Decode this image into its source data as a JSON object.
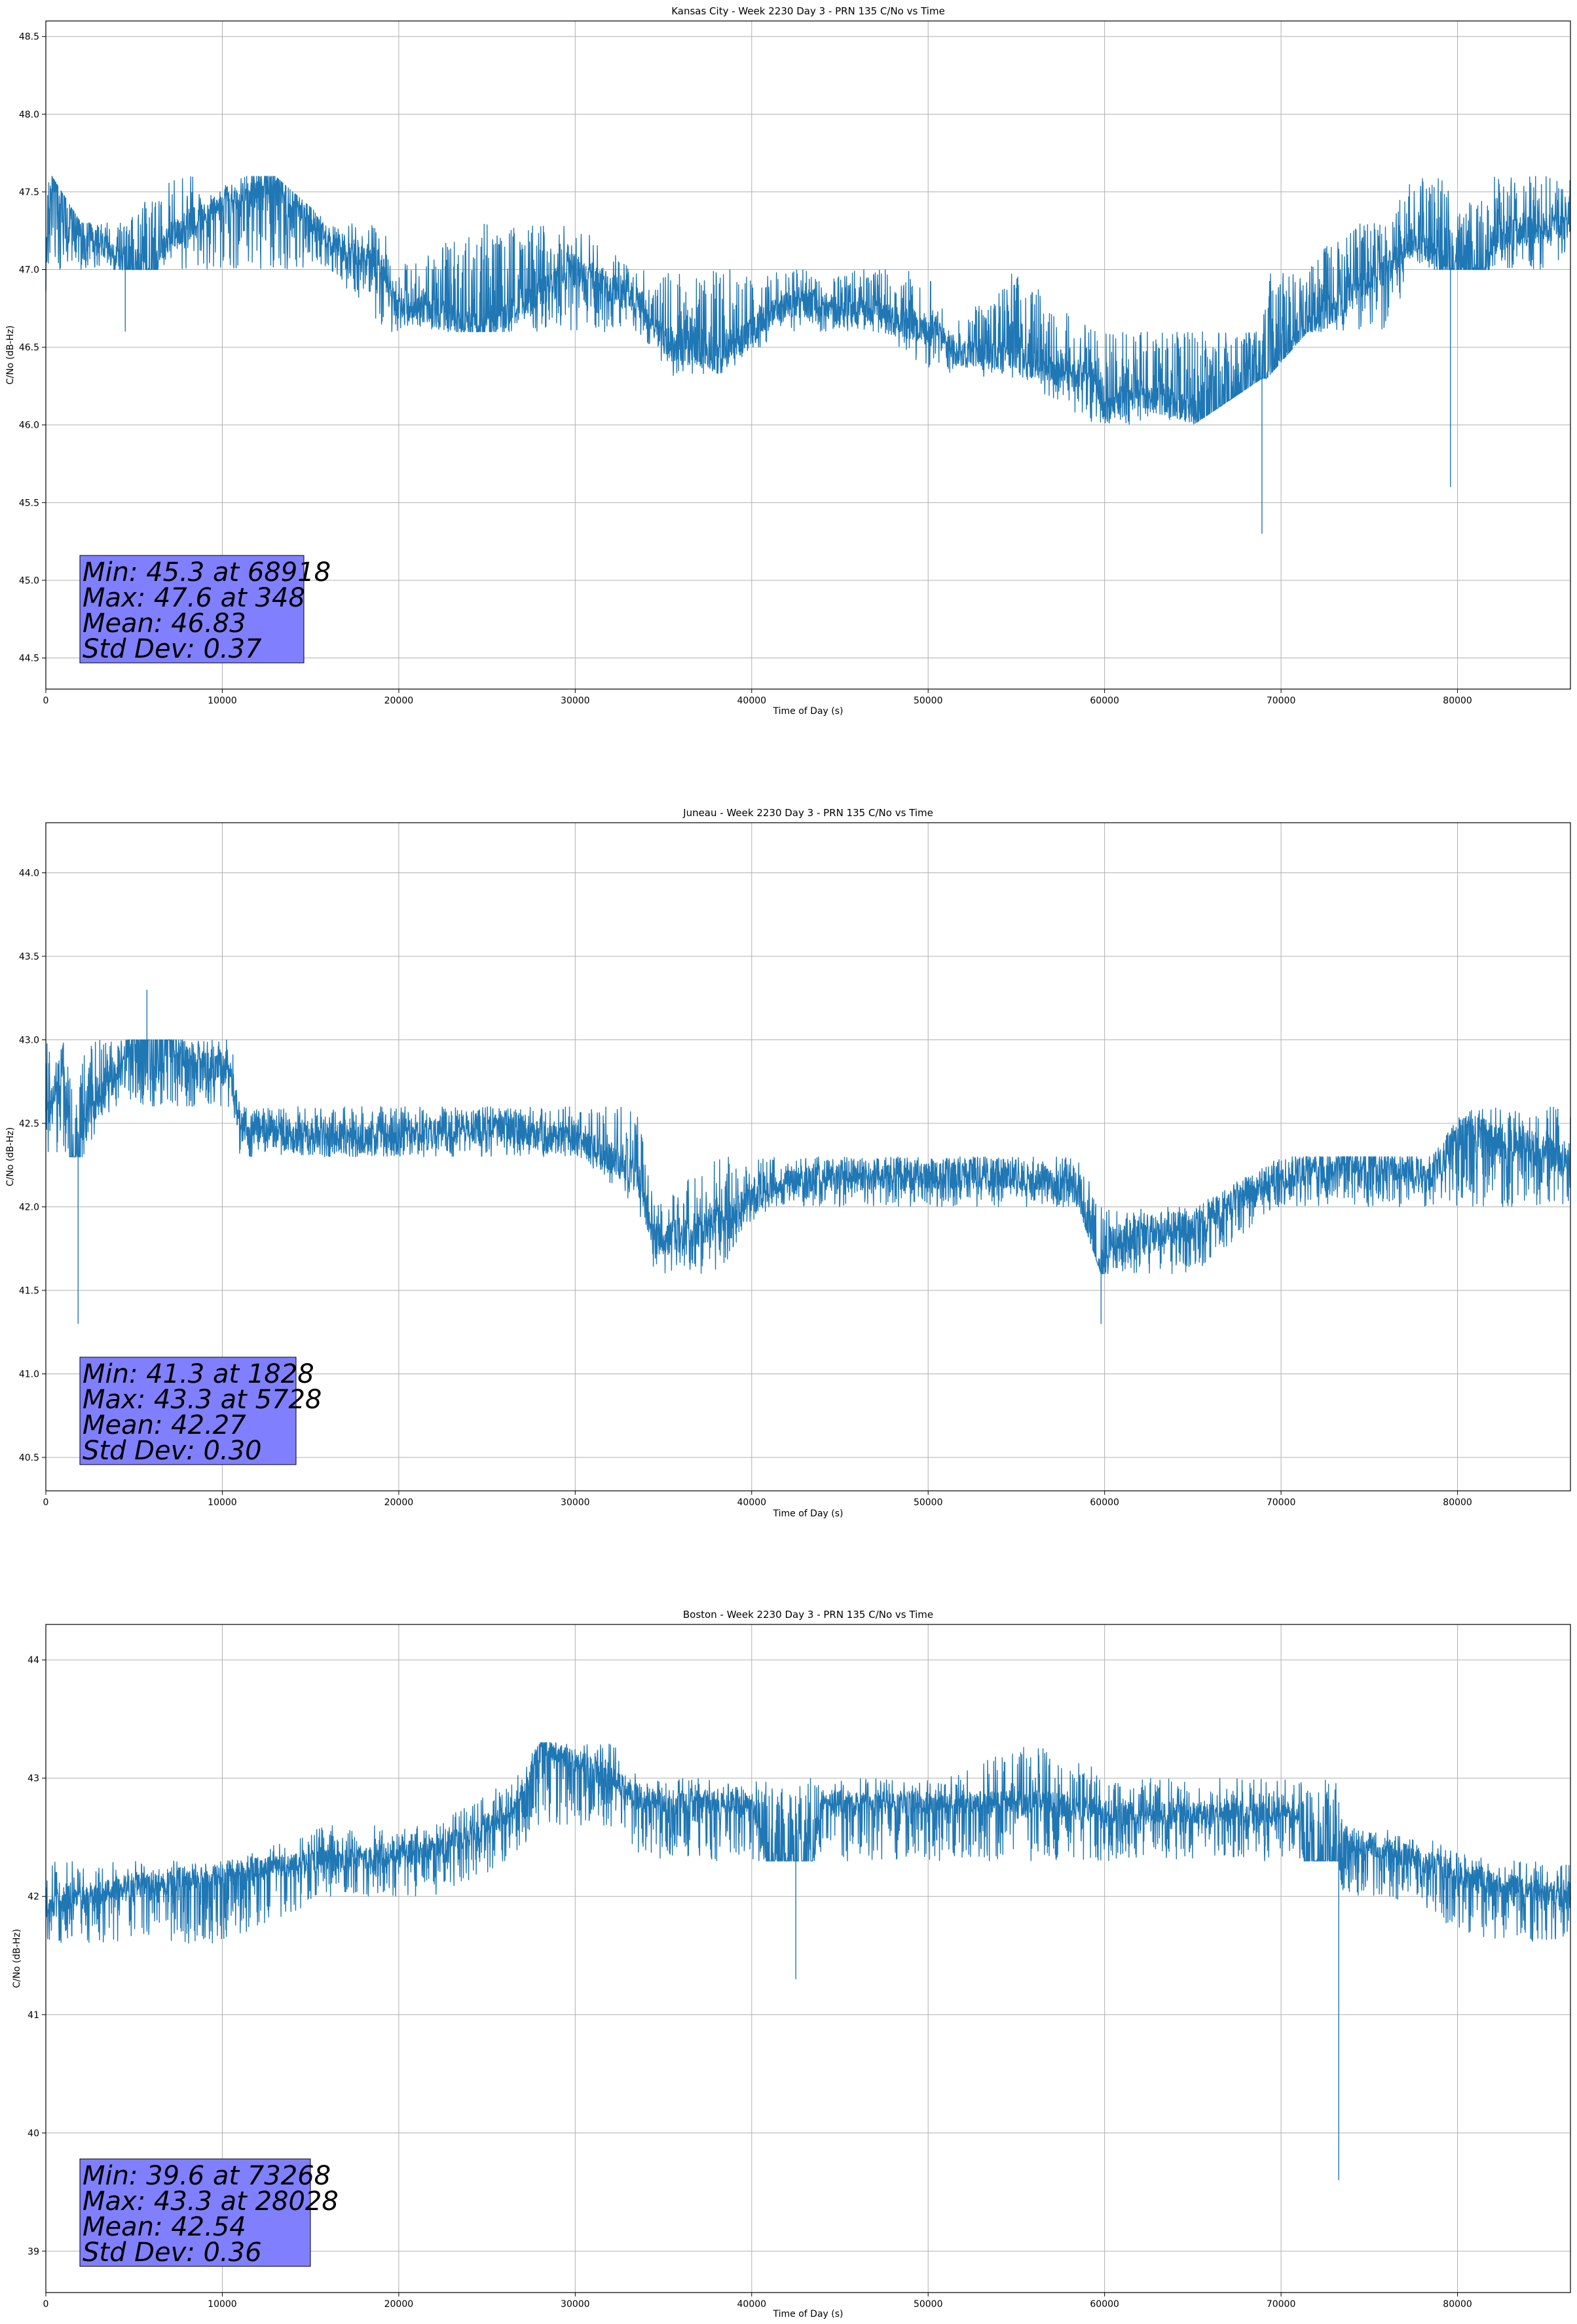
{
  "chart_data": [
    {
      "type": "line",
      "title": "Kansas City - Week 2230 Day 3 - PRN 135 C/No vs Time",
      "xlabel": "Time of Day (s)",
      "ylabel": "C/No (dB-Hz)",
      "xlim": [
        0,
        86400
      ],
      "ylim": [
        44.3,
        48.6
      ],
      "xticks": [
        0,
        10000,
        20000,
        30000,
        40000,
        50000,
        60000,
        70000,
        80000
      ],
      "yticks": [
        44.5,
        45.0,
        45.5,
        46.0,
        46.5,
        47.0,
        47.5,
        48.0,
        48.5
      ],
      "ytick_labels": [
        "44.5",
        "45.0",
        "45.5",
        "46.0",
        "46.5",
        "47.0",
        "47.5",
        "48.0",
        "48.5"
      ],
      "grid": true,
      "line_color": "#1f77b4",
      "series": [
        {
          "name": "C/No",
          "x": [
            0,
            348,
            2000,
            4400,
            4500,
            7000,
            9500,
            13000,
            16000,
            19200,
            19600,
            25000,
            30000,
            33500,
            35500,
            38000,
            42000,
            47000,
            50500,
            51000,
            55000,
            59500,
            60000,
            62000,
            65000,
            68918,
            69200,
            71500,
            73500,
            76000,
            77500,
            79500,
            79600,
            82000,
            86400
          ],
          "y": [
            47.0,
            47.6,
            47.3,
            47.0,
            46.6,
            47.2,
            47.4,
            47.6,
            47.2,
            47.0,
            46.8,
            46.6,
            47.0,
            46.8,
            46.5,
            46.4,
            46.8,
            46.7,
            46.6,
            46.5,
            46.4,
            46.3,
            46.1,
            46.2,
            46.1,
            45.3,
            46.3,
            46.6,
            46.8,
            47.0,
            47.2,
            47.0,
            45.6,
            47.2,
            47.3
          ],
          "band_low": [
            47.0,
            47.0,
            47.0,
            47.0,
            47.0,
            47.0,
            47.0,
            47.0,
            47.0,
            46.6,
            46.6,
            46.6,
            46.6,
            46.6,
            46.3,
            46.3,
            46.6,
            46.6,
            46.3,
            46.3,
            46.3,
            46.0,
            46.0,
            46.0,
            46.0,
            46.3,
            46.3,
            46.6,
            46.6,
            46.6,
            47.0,
            47.0,
            47.0,
            47.0,
            47.0
          ],
          "band_high": [
            47.6,
            47.6,
            47.3,
            47.3,
            47.3,
            47.6,
            47.6,
            47.6,
            47.3,
            47.3,
            47.0,
            47.3,
            47.3,
            47.0,
            47.0,
            47.0,
            47.0,
            47.0,
            47.0,
            46.6,
            47.0,
            46.6,
            46.6,
            46.6,
            46.6,
            46.6,
            47.0,
            47.0,
            47.3,
            47.3,
            47.6,
            47.6,
            47.3,
            47.6,
            47.6
          ]
        }
      ],
      "stats": {
        "min": "Min: 45.3 at 68918",
        "max": "Max: 47.6 at 348",
        "mean": "Mean: 46.83",
        "std": "Std Dev: 0.37"
      },
      "stats_box_color": "#8080ff"
    },
    {
      "type": "line",
      "title": "Juneau - Week 2230 Day 3 - PRN 135 C/No vs Time",
      "xlabel": "Time of Day (s)",
      "ylabel": "C/No (dB-Hz)",
      "xlim": [
        0,
        86400
      ],
      "ylim": [
        40.3,
        44.3
      ],
      "xticks": [
        0,
        10000,
        20000,
        30000,
        40000,
        50000,
        60000,
        70000,
        80000
      ],
      "yticks": [
        40.5,
        41.0,
        41.5,
        42.0,
        42.5,
        43.0,
        43.5,
        44.0
      ],
      "ytick_labels": [
        "40.5",
        "41.0",
        "41.5",
        "42.0",
        "42.5",
        "43.0",
        "43.5",
        "44.0"
      ],
      "grid": true,
      "line_color": "#1f77b4",
      "series": [
        {
          "name": "C/No",
          "x": [
            0,
            1000,
            1828,
            2100,
            4000,
            5728,
            8000,
            10500,
            11000,
            15000,
            20000,
            25000,
            30000,
            33500,
            34500,
            38000,
            41000,
            45000,
            50000,
            55000,
            58500,
            59800,
            60300,
            65000,
            70000,
            75000,
            78500,
            80500,
            82000,
            86400
          ],
          "y": [
            42.5,
            42.9,
            41.3,
            42.5,
            42.8,
            43.3,
            42.9,
            42.8,
            42.5,
            42.4,
            42.4,
            42.5,
            42.4,
            42.2,
            41.8,
            41.9,
            42.1,
            42.2,
            42.2,
            42.2,
            42.1,
            41.3,
            41.8,
            41.9,
            42.2,
            42.3,
            42.2,
            42.5,
            42.4,
            42.3
          ],
          "band_low": [
            42.3,
            42.3,
            42.3,
            42.3,
            42.6,
            42.6,
            42.6,
            42.6,
            42.3,
            42.3,
            42.3,
            42.3,
            42.3,
            42.0,
            41.6,
            41.6,
            42.0,
            42.0,
            42.0,
            42.0,
            42.0,
            41.6,
            41.6,
            41.6,
            42.0,
            42.0,
            42.0,
            42.0,
            42.0,
            42.0
          ],
          "band_high": [
            43.0,
            43.0,
            42.6,
            43.0,
            43.0,
            43.0,
            43.0,
            43.0,
            42.6,
            42.6,
            42.6,
            42.6,
            42.6,
            42.6,
            42.0,
            42.3,
            42.3,
            42.3,
            42.3,
            42.3,
            42.3,
            42.0,
            42.0,
            42.0,
            42.3,
            42.3,
            42.3,
            42.6,
            42.6,
            42.6
          ]
        }
      ],
      "stats": {
        "min": "Min: 41.3 at 1828",
        "max": "Max: 43.3 at 5728",
        "mean": "Mean: 42.27",
        "std": "Std Dev: 0.30"
      },
      "stats_box_color": "#8080ff"
    },
    {
      "type": "line",
      "title": "Boston - Week 2230 Day 3 - PRN 135 C/No vs Time",
      "xlabel": "Time of Day (s)",
      "ylabel": "C/No (dB-Hz)",
      "xlim": [
        0,
        86400
      ],
      "ylim": [
        38.65,
        44.3
      ],
      "xticks": [
        0,
        10000,
        20000,
        30000,
        40000,
        50000,
        60000,
        70000,
        80000
      ],
      "yticks": [
        39,
        40,
        41,
        42,
        43,
        44
      ],
      "ytick_labels": [
        "39",
        "40",
        "41",
        "42",
        "43",
        "44"
      ],
      "grid": true,
      "line_color": "#1f77b4",
      "series": [
        {
          "name": "C/No",
          "x": [
            0,
            5000,
            10000,
            16000,
            22000,
            26500,
            28028,
            32000,
            34000,
            40000,
            42500,
            44000,
            50000,
            56000,
            61000,
            66000,
            71000,
            73268,
            73500,
            76000,
            82000,
            86400
          ],
          "y": [
            41.9,
            42.1,
            42.2,
            42.3,
            42.4,
            42.7,
            43.3,
            43.0,
            42.8,
            42.8,
            41.3,
            42.8,
            42.8,
            42.8,
            42.7,
            42.7,
            42.7,
            39.6,
            42.5,
            42.4,
            42.1,
            42.0
          ],
          "band_low": [
            41.6,
            41.6,
            41.6,
            42.0,
            42.0,
            42.3,
            42.6,
            42.6,
            42.3,
            42.3,
            42.3,
            42.3,
            42.3,
            42.3,
            42.3,
            42.3,
            42.3,
            42.3,
            42.0,
            42.0,
            41.6,
            41.6
          ],
          "band_high": [
            42.3,
            42.3,
            42.3,
            42.6,
            42.6,
            43.0,
            43.3,
            43.3,
            43.0,
            43.0,
            43.0,
            43.0,
            43.0,
            43.3,
            43.0,
            43.0,
            43.0,
            43.0,
            42.6,
            42.6,
            42.3,
            42.3
          ]
        }
      ],
      "stats": {
        "min": "Min: 39.6 at 73268",
        "max": "Max: 43.3 at 28028",
        "mean": "Mean: 42.54",
        "std": "Std Dev: 0.36"
      },
      "stats_box_color": "#8080ff"
    }
  ]
}
